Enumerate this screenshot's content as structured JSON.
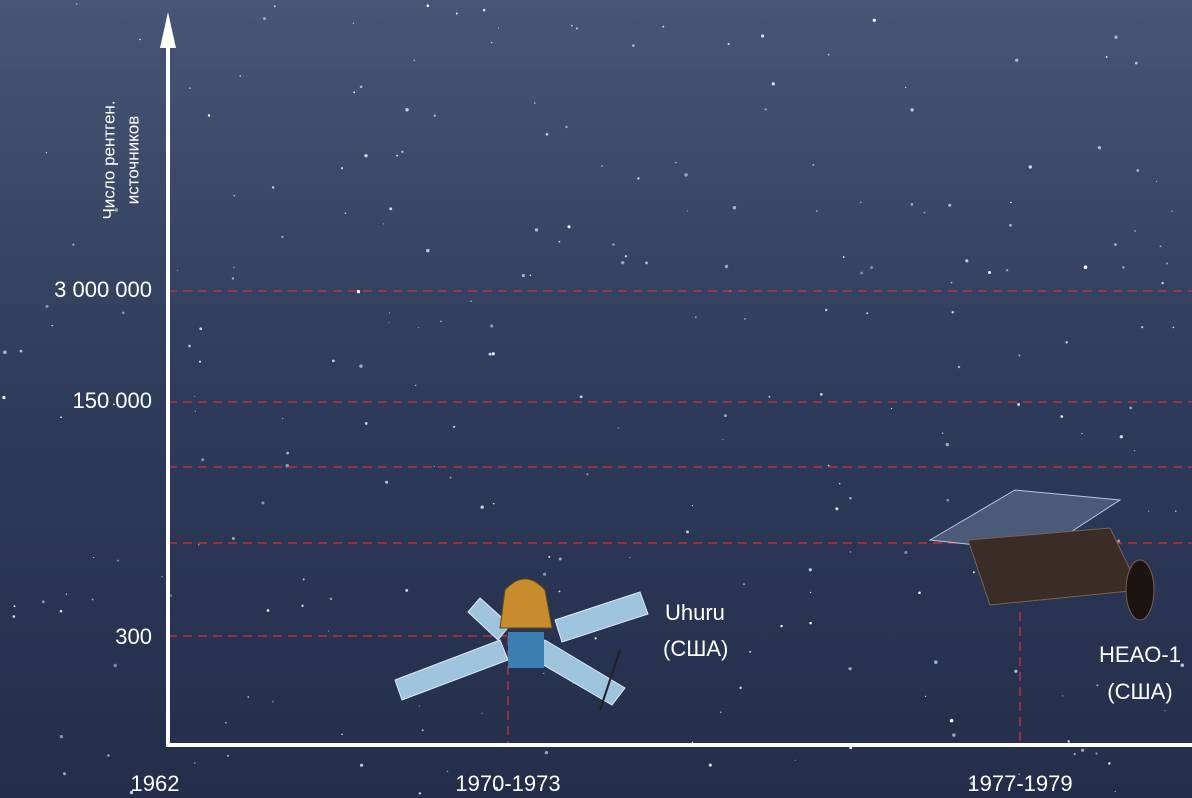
{
  "axis": {
    "title_lines": [
      "Число рентген.",
      "источников"
    ]
  },
  "y_labels": [
    "3 000 000",
    "150 000",
    "300"
  ],
  "x_labels": [
    "1962",
    "1970-1973",
    "1977-1979"
  ],
  "satellites": [
    {
      "name": "Uhuru",
      "country": "(США)"
    },
    {
      "name": "HEAO-1",
      "country": "(США)"
    }
  ]
}
